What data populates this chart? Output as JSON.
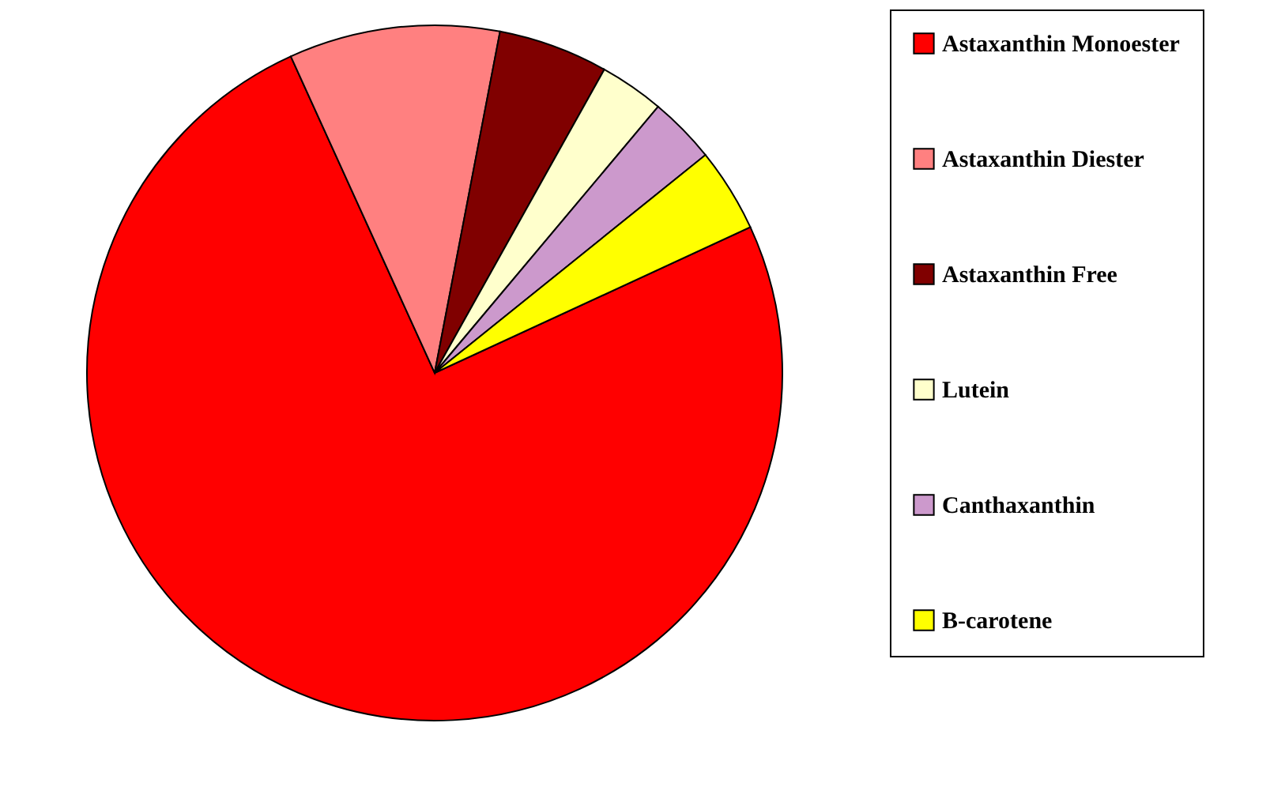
{
  "chart_data": {
    "type": "pie",
    "categories": [
      "Astaxanthin Monoester",
      "Astaxanthin Diester",
      "Astaxanthin Free",
      "Lutein",
      "Canthaxanthin",
      "B-carotene"
    ],
    "values": [
      75.1,
      9.8,
      5.1,
      3.0,
      3.1,
      3.9
    ],
    "colors": [
      "#ff0000",
      "#ff8080",
      "#800000",
      "#ffffcc",
      "#cc99cc",
      "#ffff00"
    ],
    "legend": "right"
  }
}
